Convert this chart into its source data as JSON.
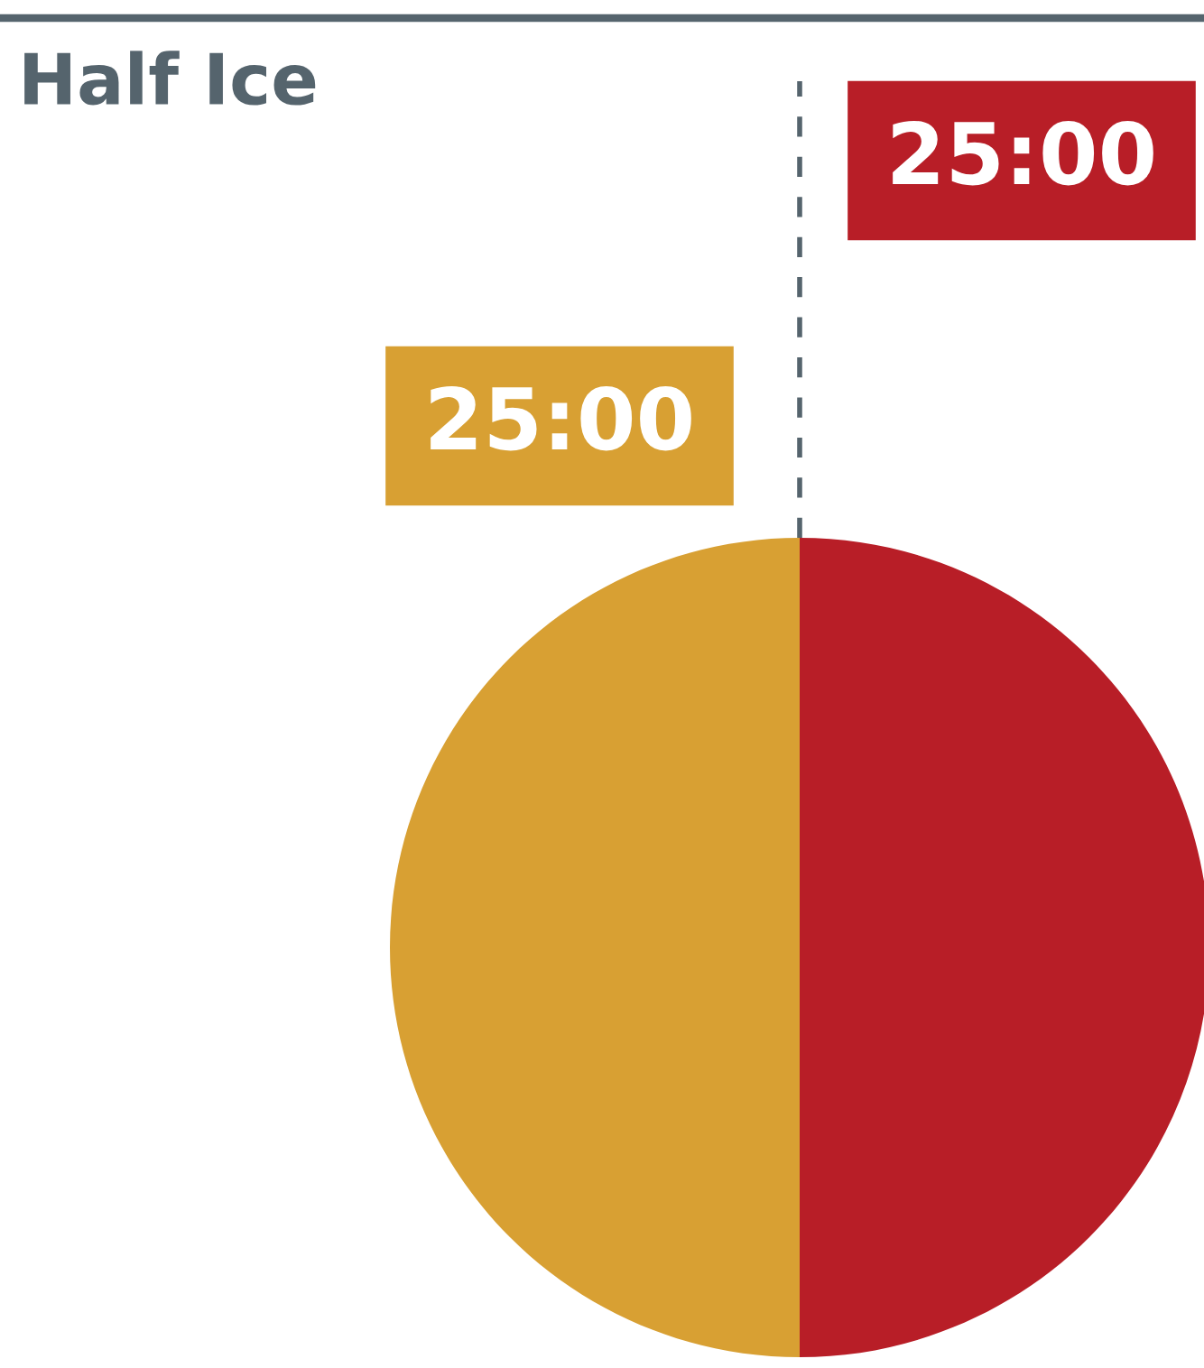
{
  "chart_data": {
    "type": "pie",
    "title": "Half Ice",
    "categories": [
      null,
      null
    ],
    "values": [
      25,
      25
    ],
    "colors": [
      "#b81e27",
      "#d8a033"
    ],
    "value_labels": [
      "25:00",
      "25:00"
    ]
  }
}
